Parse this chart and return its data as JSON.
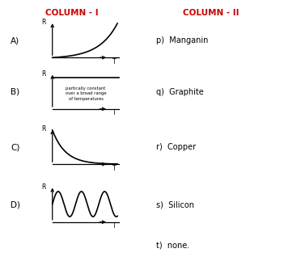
{
  "title_col1": "COLUMN - I",
  "title_col2": "COLUMN - II",
  "title_color": "#cc0000",
  "title_fontsize": 7.5,
  "labels": [
    "A)",
    "B)",
    "C)",
    "D)"
  ],
  "col2_items": [
    "p)  Manganin",
    "q)  Graphite",
    "r)  Copper",
    "s)  Silicon",
    "t)  none."
  ],
  "annotation_B": "partically constant\nover a broad range\nof temperatures",
  "bg_color": "#ffffff",
  "line_color": "#000000"
}
